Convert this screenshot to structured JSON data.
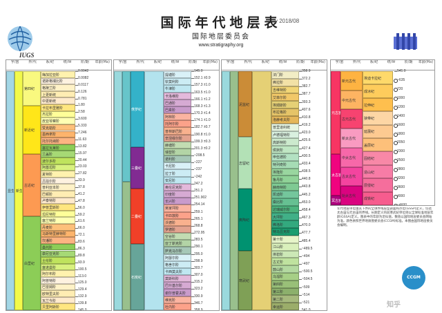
{
  "header": {
    "title": "国际年代地层表",
    "version": "v 2018/08",
    "subtitle": "国际地层委员会",
    "url": "www.stratigraphy.org"
  },
  "logos": {
    "left_text": "IUGS",
    "badge_text": "CCGM"
  },
  "column_headers": [
    "宇/宙",
    "界/代",
    "系/纪",
    "统/世",
    "阶/期",
    "年龄(Ma)"
  ],
  "panel1": {
    "eons": [
      "显生宙"
    ],
    "eras": [
      "新生代"
    ],
    "systems": [
      "第四纪",
      "新近纪",
      "古近纪"
    ],
    "stages": [
      "梅加拉亚阶",
      "诺斯格瑞比阶",
      "格陵兰阶",
      "上更新统",
      "中更新统",
      "卡拉布里雅阶",
      "杰拉阶",
      "皮亚琴察阶",
      "赞克勒阶",
      "墨西拿阶",
      "托尔托纳阶",
      "塞拉瓦莱阶",
      "兰盖阶",
      "波尔多阶",
      "阿基坦阶",
      "夏特阶",
      "吕珀尔阶",
      "普利亚本阶",
      "巴顿阶",
      "卢泰特阶",
      "伊普里斯阶",
      "坦尼特阶",
      "塞兰特阶",
      "丹麦阶",
      "马斯特里赫特阶",
      "坎潘阶",
      "桑托阶",
      "康尼亚克阶",
      "土伦阶",
      "塞诺曼阶",
      "阿尔布阶",
      "阿普特阶",
      "巴雷姆阶",
      "欧特里夫阶",
      "瓦兰今阶",
      "贝里阿斯阶"
    ],
    "ages": [
      "0.0042",
      "0.0082",
      "0.0117",
      "0.126",
      "0.781",
      "1.80",
      "2.58",
      "3.600",
      "5.333",
      "7.246",
      "11.63",
      "13.82",
      "15.97",
      "20.44",
      "23.03",
      "27.82",
      "33.9",
      "37.8",
      "41.2",
      "47.8",
      "56.0",
      "59.2",
      "61.6",
      "66.0",
      "72.1",
      "83.6",
      "86.3",
      "89.8",
      "93.9",
      "100.5",
      "113.0",
      "125.0",
      "129.4",
      "132.9",
      "139.8",
      "145.0"
    ]
  },
  "panel2": {
    "systems": [
      "侏罗纪",
      "三叠纪",
      "二叠纪",
      "石炭纪"
    ],
    "stages": [
      "提塘阶",
      "钦莫利阶",
      "牛津阶",
      "卡洛维阶",
      "巴通阶",
      "巴柔阶",
      "阿林阶",
      "托阿尔阶",
      "普林斯巴阶",
      "辛涅缪尔阶",
      "赫塘阶",
      "瑞替阶",
      "诺利阶",
      "卡尼阶",
      "拉丁阶",
      "安尼阶",
      "奥伦尼克阶",
      "印度阶",
      "长兴阶",
      "吴家坪阶",
      "卡匹敦阶",
      "沃德阶",
      "罗德阶",
      "空谷阶",
      "亚丁斯克阶",
      "萨克马尔阶",
      "阿瑟尔阶",
      "格舍尔阶",
      "卡西莫夫阶",
      "莫斯科阶",
      "巴什基尔阶",
      "谢尔普霍夫阶",
      "维宪阶",
      "杜内阶"
    ],
    "ages": [
      "145.0",
      "152.1 ±0.9",
      "157.3 ±1.0",
      "163.5 ±1.0",
      "166.1 ±1.2",
      "168.3 ±1.3",
      "170.3 ±1.4",
      "174.1 ±1.0",
      "182.7 ±0.7",
      "190.8 ±1.0",
      "199.3 ±0.3",
      "201.3 ±0.2",
      "~208.5",
      "~227",
      "~237",
      "~242",
      "247.2",
      "251.2",
      "251.902",
      "254.14",
      "259.1",
      "265.1",
      "268.8",
      "272.95",
      "283.5",
      "290.1",
      "295.0",
      "298.9",
      "303.7",
      "307.0",
      "315.2",
      "323.2",
      "330.9",
      "346.7",
      "358.9"
    ]
  },
  "panel3": {
    "systems": [
      "泥盆纪",
      "志留纪",
      "奥陶纪",
      "寒武纪"
    ],
    "stages": [
      "法门阶",
      "弗拉阶",
      "吉维特阶",
      "艾菲尔阶",
      "埃姆斯阶",
      "布拉格阶",
      "洛赫考夫阶",
      "普里道利统",
      "卢德福特阶",
      "高斯特阶",
      "侯默阶",
      "申伍德阶",
      "特列奇阶",
      "埃隆阶",
      "鲁丹阶",
      "赫南特阶",
      "凯迪阶",
      "桑比阶",
      "达瑞威尔阶",
      "大坪阶",
      "弗洛阶",
      "特马豆克阶",
      "第十阶",
      "江山阶",
      "排碧阶",
      "古丈阶",
      "鼓山阶",
      "乌溜阶",
      "第四阶",
      "第三阶",
      "第二阶",
      "幸运阶"
    ],
    "ages": [
      "358.9",
      "372.2",
      "382.7",
      "387.7",
      "393.3",
      "407.6",
      "410.8",
      "419.2",
      "423.0",
      "425.6",
      "427.4",
      "430.5",
      "433.4",
      "438.5",
      "440.8",
      "443.8",
      "445.2",
      "453.0",
      "458.4",
      "467.3",
      "470.0",
      "477.7",
      "485.4",
      "~489.5",
      "~494",
      "~497",
      "~500.5",
      "~504.5",
      "~509",
      "~514",
      "~521",
      "541.0"
    ]
  },
  "panel4": {
    "eons": [
      "元古宙",
      "太古宙",
      "冥古宙"
    ],
    "eras": [
      "新元古代",
      "中元古代",
      "古元古代",
      "新太古代",
      "中太古代",
      "古太古代",
      "始太古代"
    ],
    "systems": [
      "埃迪卡拉纪",
      "成冰纪",
      "拉伸纪",
      "狭带纪",
      "延展纪",
      "盖层纪",
      "固结纪",
      "造山纪",
      "层侵纪",
      "成铁纪"
    ],
    "ages": [
      "541.0",
      "~635",
      "720",
      "1000",
      "1200",
      "1400",
      "1600",
      "1800",
      "2050",
      "2300",
      "2500",
      "2800",
      "3200",
      "3600",
      "4000",
      "~4600"
    ]
  },
  "notes": "年代地层单位由其下界的全球界线层型剖面和点位(GSSP)定义，包括太古宙与元古宙的界线。长期定义的前寒武纪单位则以全球标准地层年龄(GSSA)定义。图表中的年龄为近似值，数值以国际地层委员会网站为准。颜色依照世界地质图委员会(CCGM)标准。本图由国际地层委员会编制。",
  "watermark": "知乎"
}
